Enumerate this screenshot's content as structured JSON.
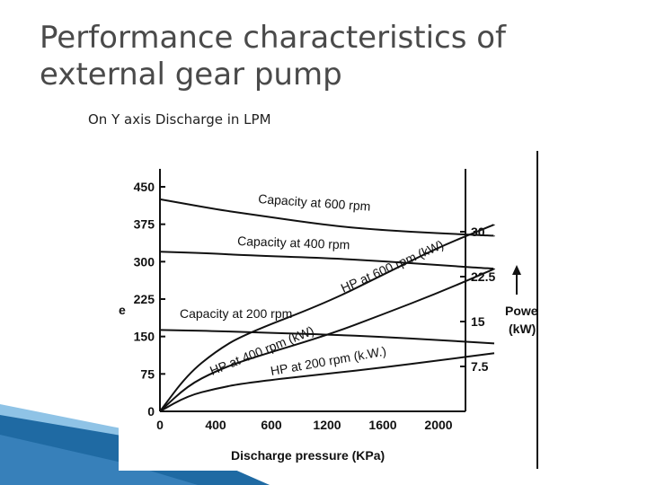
{
  "slide": {
    "title_line1": "Performance characteristics of",
    "title_line2": "external gear pump",
    "subtitle": "On Y axis Discharge in LPM"
  },
  "colors": {
    "title": "#4a4a4a",
    "curve": "#111111",
    "deco_dark": "#1f6aa3",
    "deco_light": "#8fc3e6"
  },
  "chart_data": {
    "type": "line",
    "xlabel": "Discharge pressure (KPa)",
    "x_tick_labels": [
      "0",
      "400",
      "600",
      "1200",
      "1600",
      "2000"
    ],
    "y_left": {
      "label": "e",
      "ticks": [
        "0",
        "75",
        "150",
        "225",
        "300",
        "375",
        "450"
      ],
      "range": [
        0,
        450
      ]
    },
    "y_right": {
      "label_line1": "Powe",
      "label_line2": "(kW)",
      "ticks": [
        "7.5",
        "15",
        "22.5",
        "30"
      ],
      "range": [
        0,
        37.5
      ]
    },
    "series": [
      {
        "name": "Capacity at 600 rpm",
        "axis": "left",
        "points": [
          [
            0,
            425
          ],
          [
            400,
            405
          ],
          [
            600,
            397
          ],
          [
            1200,
            373
          ],
          [
            1600,
            363
          ],
          [
            2000,
            357
          ],
          [
            2400,
            352
          ]
        ]
      },
      {
        "name": "Capacity at 400 rpm",
        "axis": "left",
        "points": [
          [
            0,
            320
          ],
          [
            400,
            316
          ],
          [
            600,
            313
          ],
          [
            1200,
            307
          ],
          [
            1600,
            301
          ],
          [
            2000,
            293
          ],
          [
            2400,
            286
          ]
        ]
      },
      {
        "name": "Capacity at 200 rpm",
        "axis": "left",
        "points": [
          [
            0,
            163
          ],
          [
            400,
            161
          ],
          [
            600,
            159
          ],
          [
            1200,
            154
          ],
          [
            1600,
            149
          ],
          [
            2000,
            143
          ],
          [
            2400,
            136
          ]
        ]
      },
      {
        "name": "HP at 600 rpm (kW)",
        "axis": "right",
        "points": [
          [
            0,
            0
          ],
          [
            200,
            6.2
          ],
          [
            400,
            10
          ],
          [
            600,
            12.8
          ],
          [
            1200,
            18.2
          ],
          [
            1600,
            22.8
          ],
          [
            2000,
            27.4
          ],
          [
            2400,
            31.2
          ]
        ]
      },
      {
        "name": "HP at 400 rpm (kW)",
        "axis": "right",
        "points": [
          [
            0,
            0
          ],
          [
            200,
            4.3
          ],
          [
            400,
            6.7
          ],
          [
            600,
            8.5
          ],
          [
            1200,
            12.7
          ],
          [
            1600,
            16.2
          ],
          [
            2000,
            19.8
          ],
          [
            2400,
            23.8
          ]
        ]
      },
      {
        "name": "HP at 200 rpm (k.W.)",
        "axis": "right",
        "points": [
          [
            0,
            0
          ],
          [
            200,
            2.6
          ],
          [
            400,
            3.8
          ],
          [
            600,
            4.7
          ],
          [
            1200,
            6.3
          ],
          [
            1600,
            7.3
          ],
          [
            2000,
            8.5
          ],
          [
            2400,
            9.7
          ]
        ]
      }
    ],
    "grid": false,
    "legend": "none"
  }
}
